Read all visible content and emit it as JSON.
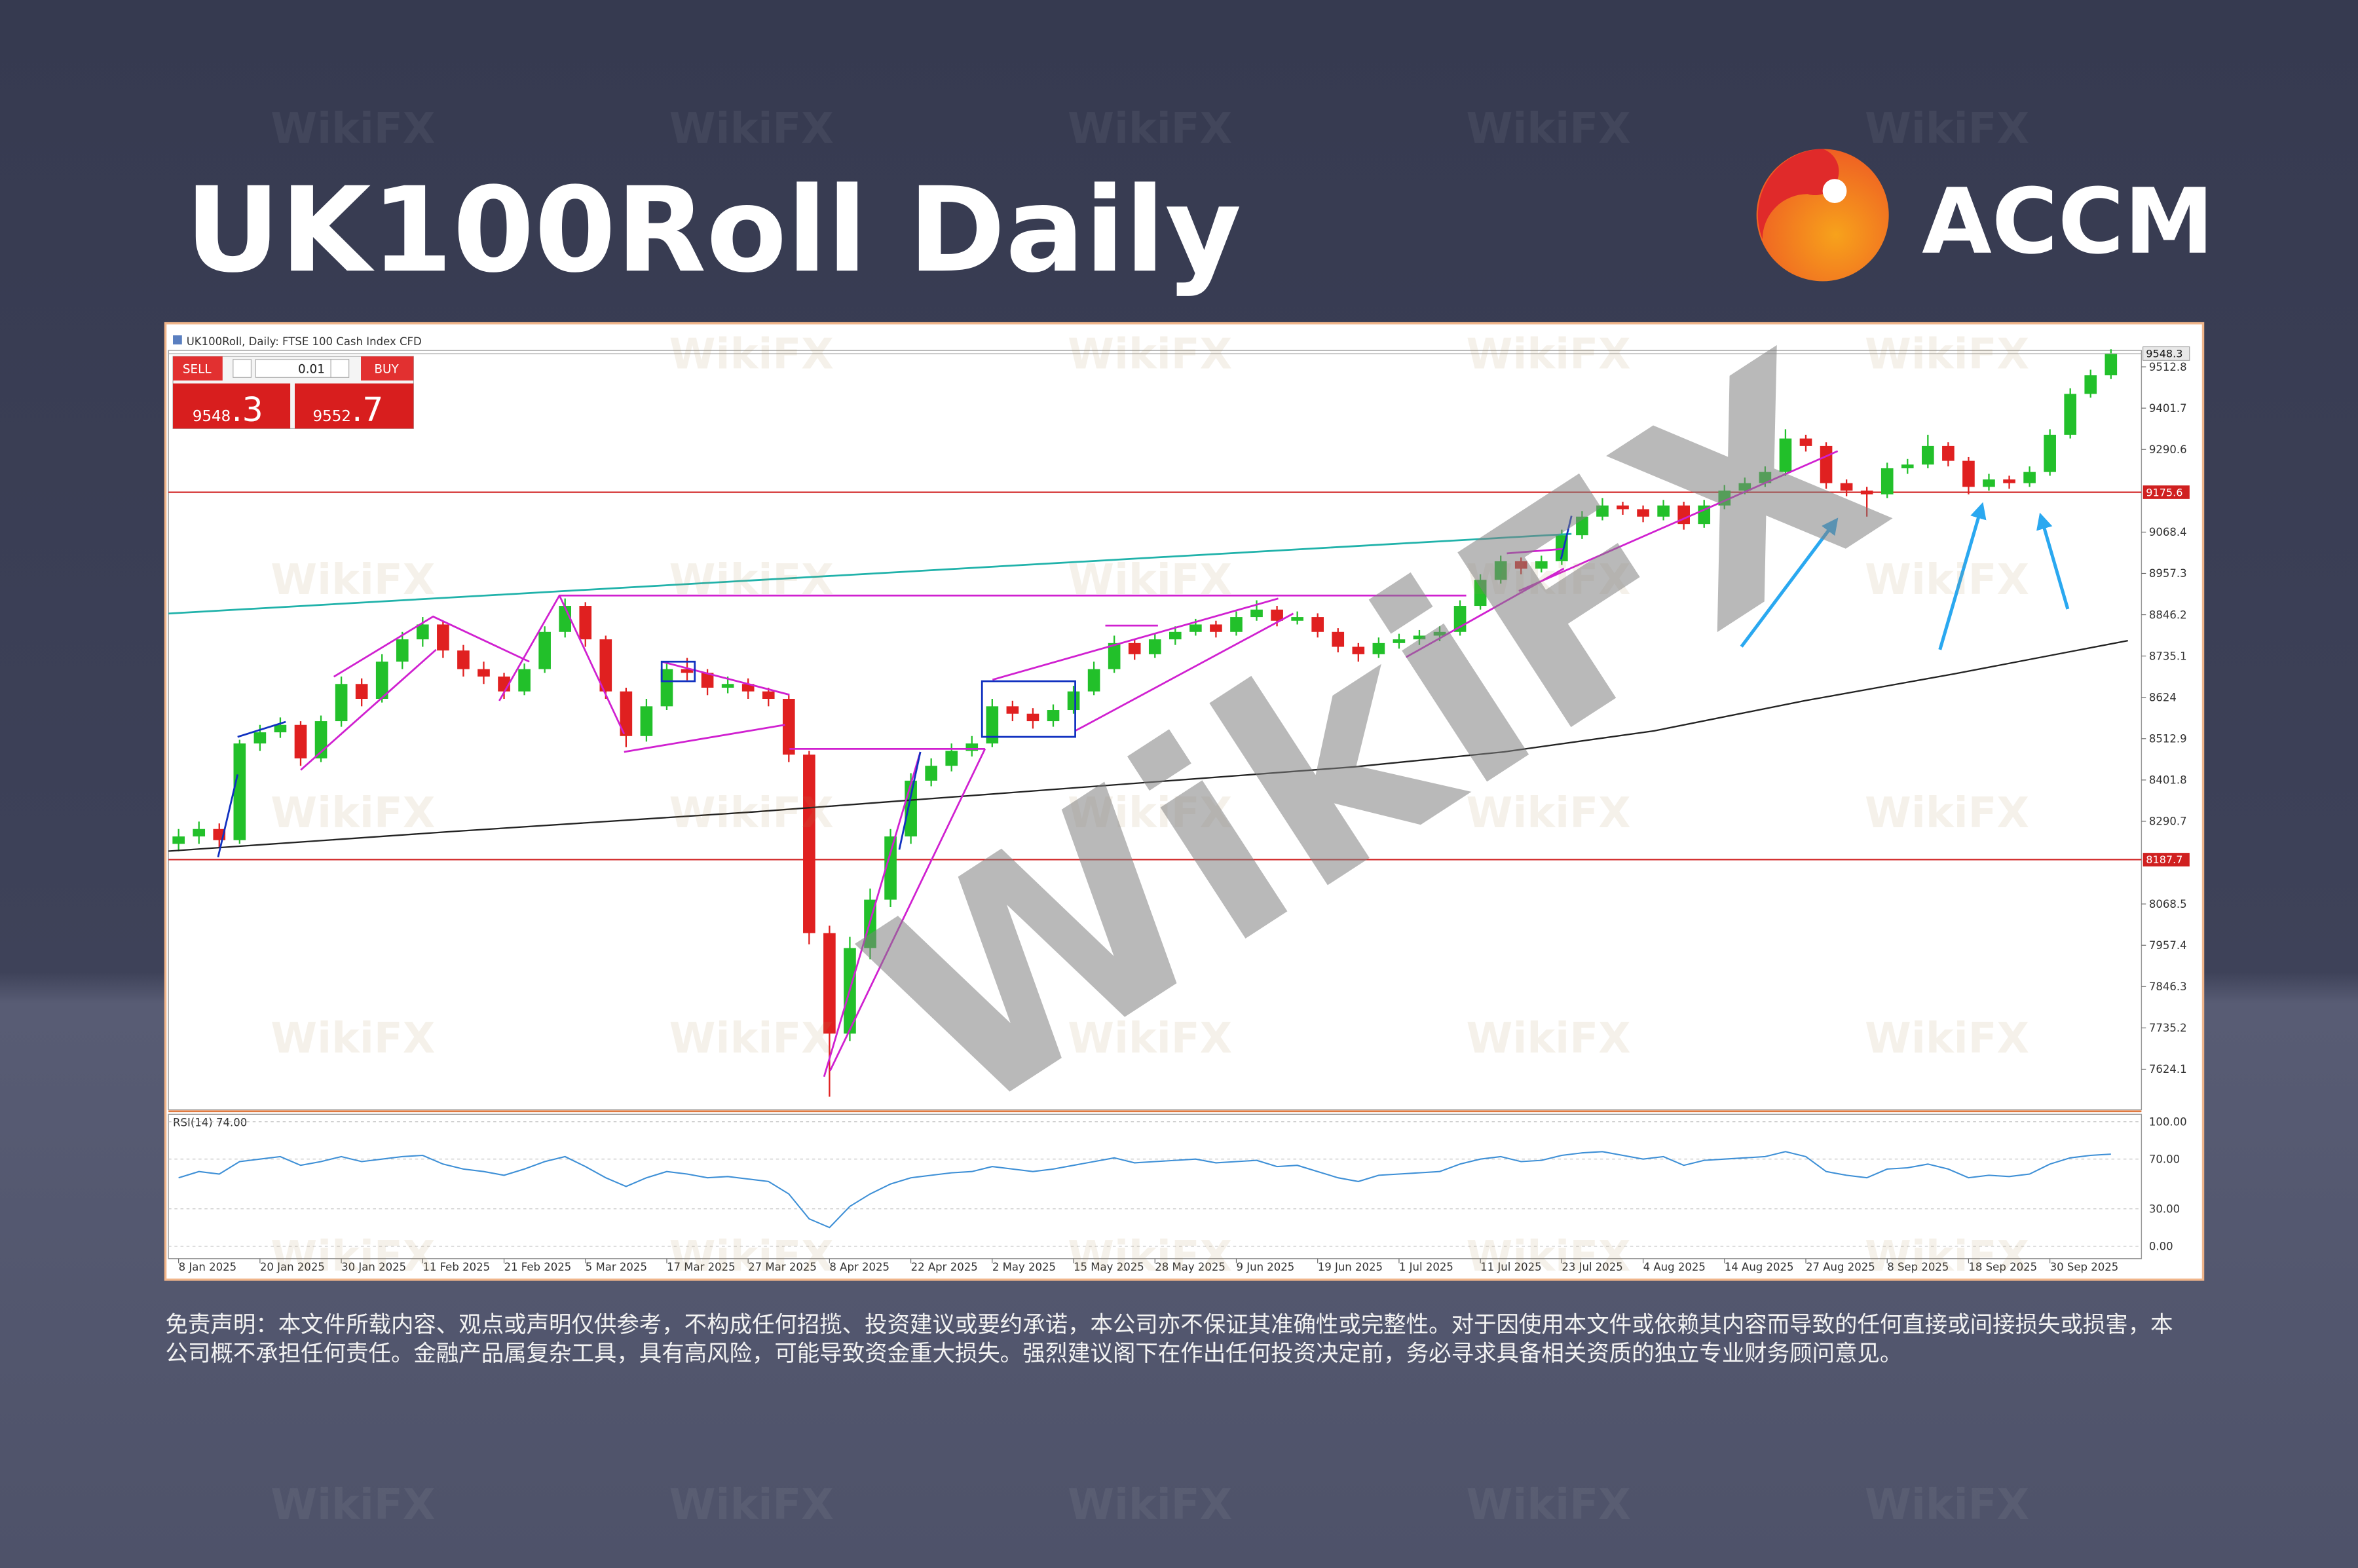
{
  "title": "UK100Roll Daily",
  "logo": "ACCM",
  "watermark": "WikiFX",
  "disclaimer": "免责声明：本文件所载内容、观点或声明仅供参考，不构成任何招揽、投资建议或要约承诺，本公司亦不保证其准确性或完整性。对于因使用本文件或依赖其内容而导致的任何直接或间接损失或损害，本公司概不承担任何责任。金融产品属复杂工具，具有高风险，可能导致资金重大损失。强烈建议阁下在作出任何投资决定前，务必寻求具备相关资质的独立专业财务顾问意见。",
  "trade_panel": {
    "sell_label": "SELL",
    "sell_int": "9548",
    "sell_frac": ".3",
    "lot": "0.01",
    "buy_label": "BUY",
    "buy_int": "9552",
    "buy_frac": ".7"
  },
  "chart_data": {
    "type": "candlestick",
    "title": "UK100Roll, Daily: FTSE 100 Cash Index CFD",
    "up_color": "#22c02a",
    "down_color": "#e02020",
    "candles": [
      [
        8230,
        8270,
        8210,
        8250
      ],
      [
        8250,
        8290,
        8230,
        8270
      ],
      [
        8270,
        8285,
        8220,
        8240
      ],
      [
        8240,
        8510,
        8230,
        8500
      ],
      [
        8500,
        8550,
        8480,
        8530
      ],
      [
        8530,
        8570,
        8515,
        8550
      ],
      [
        8550,
        8560,
        8440,
        8460
      ],
      [
        8460,
        8575,
        8450,
        8560
      ],
      [
        8560,
        8680,
        8545,
        8660
      ],
      [
        8660,
        8675,
        8600,
        8620
      ],
      [
        8620,
        8740,
        8610,
        8720
      ],
      [
        8720,
        8800,
        8700,
        8780
      ],
      [
        8780,
        8840,
        8760,
        8820
      ],
      [
        8820,
        8830,
        8730,
        8750
      ],
      [
        8750,
        8765,
        8680,
        8700
      ],
      [
        8700,
        8720,
        8660,
        8680
      ],
      [
        8680,
        8690,
        8620,
        8640
      ],
      [
        8640,
        8715,
        8630,
        8700
      ],
      [
        8700,
        8815,
        8690,
        8800
      ],
      [
        8800,
        8890,
        8785,
        8870
      ],
      [
        8870,
        8880,
        8760,
        8780
      ],
      [
        8780,
        8790,
        8620,
        8640
      ],
      [
        8640,
        8650,
        8490,
        8520
      ],
      [
        8520,
        8620,
        8505,
        8600
      ],
      [
        8600,
        8720,
        8590,
        8700
      ],
      [
        8700,
        8730,
        8670,
        8690
      ],
      [
        8690,
        8700,
        8630,
        8650
      ],
      [
        8650,
        8680,
        8635,
        8660
      ],
      [
        8660,
        8675,
        8620,
        8640
      ],
      [
        8640,
        8650,
        8600,
        8620
      ],
      [
        8620,
        8630,
        8450,
        8470
      ],
      [
        8470,
        8480,
        7960,
        7990
      ],
      [
        7990,
        8010,
        7550,
        7720
      ],
      [
        7720,
        7980,
        7700,
        7950
      ],
      [
        7950,
        8110,
        7920,
        8080
      ],
      [
        8080,
        8270,
        8060,
        8250
      ],
      [
        8250,
        8420,
        8230,
        8400
      ],
      [
        8400,
        8460,
        8385,
        8440
      ],
      [
        8440,
        8500,
        8425,
        8480
      ],
      [
        8480,
        8520,
        8465,
        8500
      ],
      [
        8500,
        8620,
        8490,
        8600
      ],
      [
        8600,
        8615,
        8560,
        8580
      ],
      [
        8580,
        8595,
        8540,
        8560
      ],
      [
        8560,
        8605,
        8545,
        8590
      ],
      [
        8590,
        8655,
        8580,
        8640
      ],
      [
        8640,
        8720,
        8630,
        8700
      ],
      [
        8700,
        8790,
        8690,
        8770
      ],
      [
        8770,
        8780,
        8725,
        8740
      ],
      [
        8740,
        8795,
        8730,
        8780
      ],
      [
        8780,
        8815,
        8765,
        8800
      ],
      [
        8800,
        8835,
        8790,
        8820
      ],
      [
        8820,
        8830,
        8785,
        8800
      ],
      [
        8800,
        8855,
        8790,
        8840
      ],
      [
        8840,
        8885,
        8830,
        8860
      ],
      [
        8860,
        8870,
        8815,
        8830
      ],
      [
        8830,
        8855,
        8820,
        8840
      ],
      [
        8840,
        8850,
        8785,
        8800
      ],
      [
        8800,
        8810,
        8745,
        8760
      ],
      [
        8760,
        8770,
        8720,
        8740
      ],
      [
        8740,
        8785,
        8730,
        8770
      ],
      [
        8770,
        8795,
        8755,
        8780
      ],
      [
        8780,
        8805,
        8765,
        8790
      ],
      [
        8790,
        8815,
        8775,
        8800
      ],
      [
        8800,
        8885,
        8790,
        8870
      ],
      [
        8870,
        8955,
        8860,
        8940
      ],
      [
        8940,
        9005,
        8930,
        8990
      ],
      [
        8990,
        9000,
        8955,
        8970
      ],
      [
        8970,
        9005,
        8960,
        8990
      ],
      [
        8990,
        9075,
        8980,
        9060
      ],
      [
        9060,
        9125,
        9050,
        9110
      ],
      [
        9110,
        9160,
        9100,
        9140
      ],
      [
        9140,
        9150,
        9115,
        9130
      ],
      [
        9130,
        9140,
        9095,
        9110
      ],
      [
        9110,
        9155,
        9100,
        9140
      ],
      [
        9140,
        9150,
        9075,
        9090
      ],
      [
        9090,
        9155,
        9080,
        9140
      ],
      [
        9140,
        9195,
        9130,
        9180
      ],
      [
        9180,
        9215,
        9170,
        9200
      ],
      [
        9200,
        9245,
        9190,
        9230
      ],
      [
        9230,
        9345,
        9220,
        9320
      ],
      [
        9320,
        9330,
        9285,
        9300
      ],
      [
        9300,
        9310,
        9185,
        9200
      ],
      [
        9200,
        9210,
        9165,
        9180
      ],
      [
        9180,
        9190,
        9110,
        9170
      ],
      [
        9170,
        9255,
        9160,
        9240
      ],
      [
        9240,
        9265,
        9225,
        9250
      ],
      [
        9250,
        9330,
        9240,
        9300
      ],
      [
        9300,
        9310,
        9245,
        9260
      ],
      [
        9260,
        9270,
        9170,
        9190
      ],
      [
        9190,
        9225,
        9180,
        9210
      ],
      [
        9210,
        9220,
        9185,
        9200
      ],
      [
        9200,
        9245,
        9190,
        9230
      ],
      [
        9230,
        9345,
        9220,
        9330
      ],
      [
        9330,
        9455,
        9320,
        9440
      ],
      [
        9440,
        9505,
        9430,
        9490
      ],
      [
        9490,
        9560,
        9480,
        9548.3
      ]
    ],
    "xlim": [
      -0.5,
      96.5
    ],
    "xticks": [
      {
        "value": 0,
        "label": "8 Jan 2025"
      },
      {
        "value": 4,
        "label": "20 Jan 2025"
      },
      {
        "value": 8,
        "label": "30 Jan 2025"
      },
      {
        "value": 12,
        "label": "11 Feb 2025"
      },
      {
        "value": 16,
        "label": "21 Feb 2025"
      },
      {
        "value": 20,
        "label": "5 Mar 2025"
      },
      {
        "value": 24,
        "label": "17 Mar 2025"
      },
      {
        "value": 28,
        "label": "27 Mar 2025"
      },
      {
        "value": 32,
        "label": "8 Apr 2025"
      },
      {
        "value": 36,
        "label": "22 Apr 2025"
      },
      {
        "value": 40,
        "label": "2 May 2025"
      },
      {
        "value": 44,
        "label": "15 May 2025"
      },
      {
        "value": 48,
        "label": "28 May 2025"
      },
      {
        "value": 52,
        "label": "9 Jun 2025"
      },
      {
        "value": 56,
        "label": "19 Jun 2025"
      },
      {
        "value": 60,
        "label": "1 Jul 2025"
      },
      {
        "value": 64,
        "label": "11 Jul 2025"
      },
      {
        "value": 68,
        "label": "23 Jul 2025"
      },
      {
        "value": 72,
        "label": "4 Aug 2025"
      },
      {
        "value": 76,
        "label": "14 Aug 2025"
      },
      {
        "value": 80,
        "label": "27 Aug 2025"
      },
      {
        "value": 84,
        "label": "8 Sep 2025"
      },
      {
        "value": 88,
        "label": "18 Sep 2025"
      },
      {
        "value": 92,
        "label": "30 Sep 2025"
      }
    ],
    "ylim": [
      7515,
      9557
    ],
    "yticks": [
      9512.8,
      9401.7,
      9290.6,
      9068.4,
      8957.3,
      8846.2,
      8735.1,
      8624.0,
      8512.9,
      8401.8,
      8290.7,
      8068.5,
      7957.4,
      7846.3,
      7735.2,
      7624.1
    ],
    "hlines": [
      9175.6,
      8187.7
    ],
    "hline_color": "#d02020",
    "rsi": {
      "title": "RSI(14) 74.00",
      "color": "#3d8fd6",
      "values": [
        55,
        60,
        58,
        68,
        70,
        72,
        65,
        68,
        72,
        68,
        70,
        72,
        73,
        66,
        62,
        60,
        57,
        62,
        68,
        72,
        64,
        55,
        48,
        55,
        60,
        58,
        55,
        56,
        54,
        52,
        42,
        22,
        15,
        32,
        42,
        50,
        55,
        57,
        59,
        60,
        64,
        62,
        60,
        62,
        65,
        68,
        71,
        67,
        68,
        69,
        70,
        67,
        68,
        69,
        64,
        65,
        60,
        55,
        52,
        57,
        58,
        59,
        60,
        66,
        70,
        72,
        68,
        69,
        73,
        75,
        76,
        73,
        70,
        72,
        65,
        69,
        70,
        71,
        72,
        76,
        72,
        60,
        57,
        55,
        62,
        63,
        66,
        62,
        55,
        57,
        56,
        58,
        66,
        71,
        73,
        74
      ],
      "ylim": [
        -10,
        106
      ],
      "yticks": [
        {
          "value": 100,
          "label": "100.00"
        },
        {
          "value": 70,
          "label": "70.00"
        },
        {
          "value": 30,
          "label": "30.00"
        },
        {
          "value": 0,
          "label": "0.00"
        }
      ]
    }
  }
}
